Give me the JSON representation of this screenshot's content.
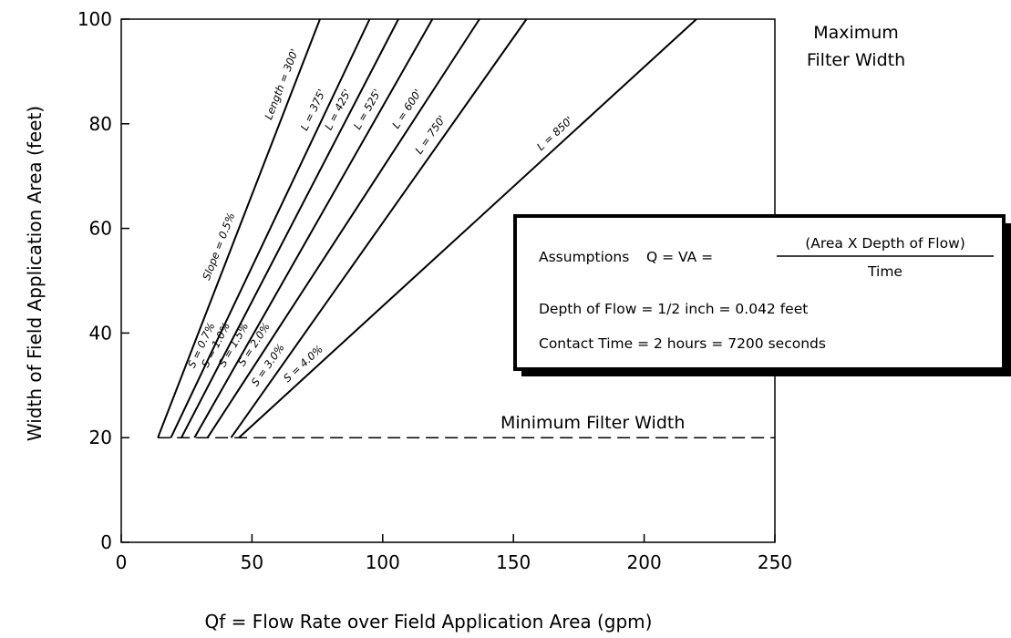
{
  "chart_data": {
    "type": "line",
    "xlabel": "Qf = Flow Rate over Field Application Area (gpm)",
    "ylabel": "Width of Field Application Area (feet)",
    "xlim": [
      0,
      250
    ],
    "ylim": [
      0,
      100
    ],
    "x_ticks": [
      "0",
      "50",
      "100",
      "150",
      "200",
      "250"
    ],
    "y_ticks": [
      "0",
      "20",
      "40",
      "60",
      "80",
      "100"
    ],
    "grid": false,
    "series": [
      {
        "slope_label": "Slope = 0.5%",
        "length_label": "Length = 300'",
        "points": [
          [
            14,
            20
          ],
          [
            76,
            100
          ]
        ]
      },
      {
        "slope_label": "S = 0.7%",
        "length_label": "L = 375'",
        "points": [
          [
            19,
            20
          ],
          [
            95,
            100
          ]
        ]
      },
      {
        "slope_label": "S = 1.0%",
        "length_label": "L = 425'",
        "points": [
          [
            23,
            20
          ],
          [
            106,
            100
          ]
        ]
      },
      {
        "slope_label": "S = 1.5%",
        "length_label": "L = 525'",
        "points": [
          [
            28,
            20
          ],
          [
            119,
            100
          ]
        ]
      },
      {
        "slope_label": "S = 2.0%",
        "length_label": "L = 600'",
        "points": [
          [
            33,
            20
          ],
          [
            137,
            100
          ]
        ]
      },
      {
        "slope_label": "S = 3.0%",
        "length_label": "L = 750'",
        "points": [
          [
            42,
            20
          ],
          [
            155,
            100
          ]
        ]
      },
      {
        "slope_label": "S = 4.0%",
        "length_label": "L = 850'",
        "points": [
          [
            45,
            20
          ],
          [
            220,
            100
          ]
        ]
      }
    ],
    "minimum_line": {
      "y": 20,
      "x_range": [
        14,
        250
      ],
      "label": "Minimum Filter Width",
      "style": "dashed"
    },
    "maximum_label": [
      "Maximum",
      "Filter Width"
    ],
    "assumptions": {
      "lead": "Assumptions",
      "formula": "Q = VA =",
      "numerator": "(Area X Depth of Flow)",
      "denominator": "Time",
      "depth": "Depth of Flow = 1/2 inch = 0.042 feet",
      "contact": "Contact Time = 2 hours = 7200 seconds"
    }
  }
}
